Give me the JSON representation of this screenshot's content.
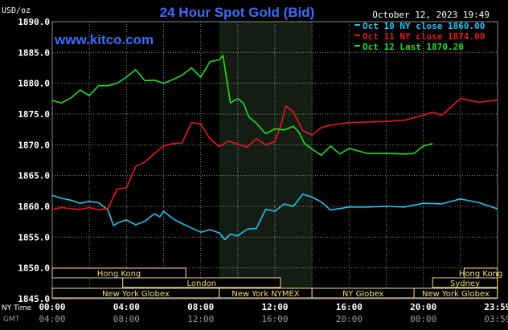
{
  "chart_data": {
    "type": "line",
    "title": "24 Hour Spot Gold (Bid)",
    "watermark": "www.kitco.com",
    "date": "October 12, 2023 19:49",
    "y_unit": "USD/oz",
    "ylim": [
      1845.0,
      1890.0
    ],
    "y_ticks": [
      "1890.0",
      "1885.0",
      "1880.0",
      "1875.0",
      "1870.0",
      "1865.0",
      "1860.0",
      "1855.0",
      "1850.0",
      "1845.0"
    ],
    "xlim": [
      0,
      24
    ],
    "x_label_ny": "NY Time",
    "x_label_gmt": "GMT",
    "x_ticks": [
      {
        "ny": "00:00",
        "gmt": "04:00"
      },
      {
        "ny": "04:00",
        "gmt": "08:00"
      },
      {
        "ny": "08:00",
        "gmt": "12:00"
      },
      {
        "ny": "12:00",
        "gmt": "16:00"
      },
      {
        "ny": "16:00",
        "gmt": "20:00"
      },
      {
        "ny": "20:00",
        "gmt": "00:00"
      },
      {
        "ny": "23:59",
        "gmt": "03:59"
      }
    ],
    "highlight_hours": [
      9.0,
      14.0
    ],
    "grid": true,
    "legend_position": "top-right",
    "series": [
      {
        "name": "Oct 10 NY close 1860.00",
        "color": "#22c4f0",
        "x": [
          0,
          0.5,
          1,
          1.5,
          2,
          2.5,
          3,
          3.3,
          3.6,
          4,
          4.5,
          5,
          5.5,
          5.8,
          6,
          6.5,
          7,
          7.5,
          8,
          8.5,
          9,
          9.3,
          9.6,
          10,
          10.5,
          11,
          11.5,
          12,
          12.5,
          13,
          13.5,
          14,
          14.5,
          15,
          16,
          17,
          18,
          19,
          20,
          21,
          22,
          23,
          23.99
        ],
        "y": [
          1861.8,
          1861.3,
          1861.0,
          1860.5,
          1860.8,
          1860.6,
          1859.4,
          1856.9,
          1857.4,
          1857.8,
          1857.0,
          1857.6,
          1858.8,
          1858.3,
          1859.2,
          1858.0,
          1857.2,
          1856.5,
          1855.8,
          1856.2,
          1855.7,
          1854.6,
          1855.5,
          1855.2,
          1856.3,
          1856.4,
          1859.5,
          1859.2,
          1860.4,
          1860.0,
          1862.0,
          1861.5,
          1860.7,
          1859.4,
          1859.9,
          1859.9,
          1860.0,
          1859.9,
          1860.5,
          1860.4,
          1861.2,
          1860.6,
          1859.6
        ]
      },
      {
        "name": "Oct 11 NY close 1874.00",
        "color": "#e81818",
        "x": [
          0,
          0.5,
          1,
          1.5,
          2,
          2.5,
          3,
          3.5,
          4,
          4.5,
          5,
          5.5,
          6,
          6.5,
          7,
          7.5,
          8,
          8.5,
          9,
          9.5,
          10,
          10.5,
          11,
          11.5,
          12,
          12.3,
          12.6,
          13,
          13.5,
          14,
          14.5,
          15,
          16,
          17,
          18,
          19,
          20,
          20.5,
          21,
          22,
          23,
          23.99
        ],
        "y": [
          1859.5,
          1859.8,
          1859.6,
          1859.5,
          1859.8,
          1859.4,
          1859.7,
          1862.8,
          1863.0,
          1866.5,
          1867.2,
          1868.6,
          1869.8,
          1870.2,
          1870.3,
          1873.6,
          1873.4,
          1871.0,
          1869.7,
          1870.6,
          1870.1,
          1869.6,
          1871.0,
          1870.0,
          1870.5,
          1873.0,
          1876.3,
          1875.3,
          1872.3,
          1871.6,
          1872.8,
          1873.2,
          1873.6,
          1873.7,
          1873.8,
          1874.0,
          1874.8,
          1875.3,
          1874.8,
          1877.5,
          1876.9,
          1877.3
        ]
      },
      {
        "name": "Oct 12 Last 1870.20",
        "color": "#22dd22",
        "x": [
          0,
          0.5,
          1,
          1.5,
          2,
          2.5,
          3,
          3.5,
          4,
          4.5,
          5,
          5.5,
          6,
          6.5,
          7,
          7.5,
          8,
          8.5,
          9,
          9.2,
          9.6,
          10,
          10.3,
          10.6,
          11,
          11.5,
          12,
          12.5,
          13,
          13.3,
          13.6,
          14,
          14.5,
          15,
          15.5,
          16,
          17,
          18,
          19,
          19.5,
          20,
          20.5
        ],
        "y": [
          1877.2,
          1876.8,
          1877.6,
          1878.9,
          1878.0,
          1879.6,
          1879.6,
          1880.0,
          1881.0,
          1882.2,
          1880.4,
          1880.5,
          1880.0,
          1880.6,
          1881.3,
          1882.5,
          1881.0,
          1883.5,
          1883.8,
          1884.5,
          1876.8,
          1877.5,
          1876.8,
          1874.5,
          1873.5,
          1871.8,
          1872.6,
          1872.4,
          1873.0,
          1872.0,
          1870.2,
          1869.3,
          1868.3,
          1869.8,
          1868.5,
          1869.4,
          1868.6,
          1868.6,
          1868.5,
          1868.6,
          1869.8,
          1870.2
        ]
      }
    ]
  },
  "sessions": [
    {
      "label": "Hong Kong",
      "start": 0.0,
      "end": 7.2,
      "row": 0
    },
    {
      "label": "London",
      "start": 3.8,
      "end": 12.3,
      "row": 1
    },
    {
      "label": "New York Globex",
      "start": 0.0,
      "end": 9.0,
      "row": 2
    },
    {
      "label": "New York NYMEX",
      "start": 9.0,
      "end": 14.0,
      "row": 2
    },
    {
      "label": "NY Globex",
      "start": 14.0,
      "end": 19.5,
      "row": 2
    },
    {
      "label": "Hong Kong",
      "start": 22.2,
      "end": 23.99,
      "row": 0
    },
    {
      "label": "Sydney",
      "start": 20.5,
      "end": 23.99,
      "row": 1
    },
    {
      "label": "New York Globex",
      "start": 19.5,
      "end": 23.99,
      "row": 2
    }
  ],
  "colors": {
    "background": "#000000",
    "plot_bg": "#000000",
    "highlight": "#141d14",
    "grid": "#8a8a8a",
    "title": "#3b6cff",
    "watermark": "#3b6cff",
    "tick_text": "#ffffff",
    "date": "#ffffff",
    "session_fill": "#000000",
    "session_text": "#f0dc8c",
    "session_border": "#f0dc8c"
  }
}
